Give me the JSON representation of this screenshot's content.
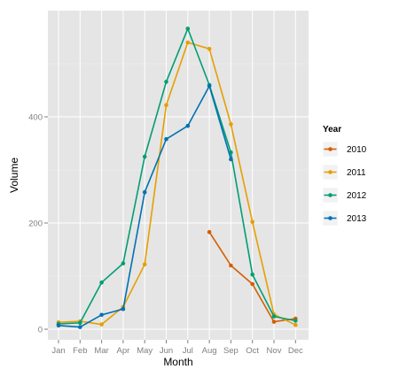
{
  "chart_data": {
    "type": "line",
    "xlabel": "Month",
    "ylabel": "Volume",
    "categories": [
      "Jan",
      "Feb",
      "Mar",
      "Apr",
      "May",
      "Jun",
      "Jul",
      "Aug",
      "Sep",
      "Oct",
      "Nov",
      "Dec"
    ],
    "y_ticks": [
      0,
      200,
      400
    ],
    "ylim": [
      -20,
      600
    ],
    "grid": true,
    "legend": {
      "title": "Year",
      "position": "right"
    },
    "series": [
      {
        "name": "2010",
        "color": "#d55e00",
        "values": [
          null,
          null,
          null,
          null,
          null,
          null,
          null,
          183,
          120,
          85,
          14,
          20
        ]
      },
      {
        "name": "2011",
        "color": "#e69f00",
        "values": [
          13,
          15,
          9,
          42,
          122,
          422,
          540,
          528,
          386,
          202,
          28,
          8
        ]
      },
      {
        "name": "2012",
        "color": "#009e73",
        "values": [
          10,
          12,
          88,
          124,
          325,
          466,
          566,
          460,
          333,
          103,
          24,
          16
        ]
      },
      {
        "name": "2013",
        "color": "#0072b2",
        "values": [
          7,
          4,
          27,
          38,
          258,
          358,
          383,
          458,
          320,
          null,
          null,
          null
        ]
      }
    ]
  }
}
